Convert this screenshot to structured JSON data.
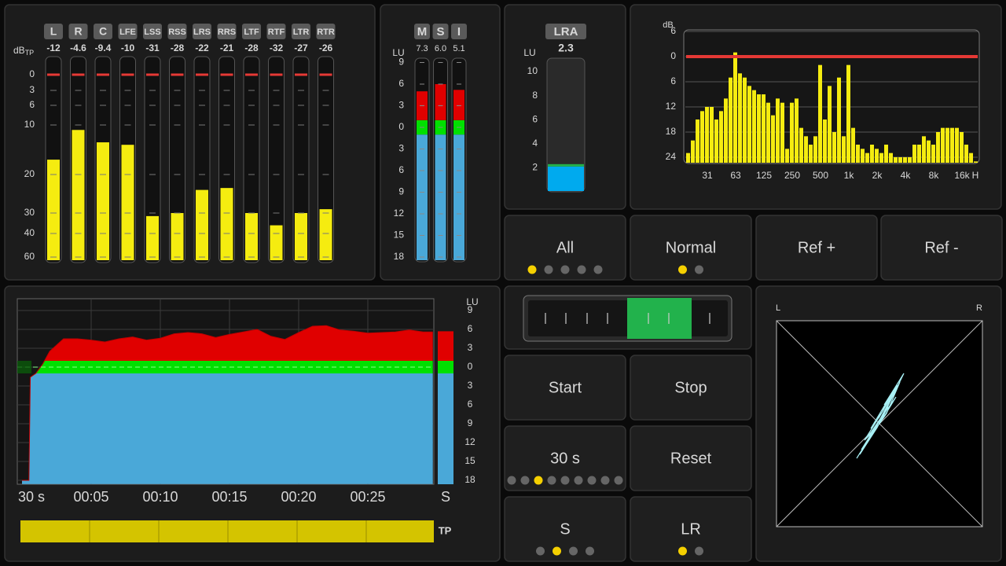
{
  "green_band": [
    -1,
    1
  ],
  "channel_meter": {
    "unit": "dB",
    "unit_sub": "TP",
    "scale": [
      0,
      {
        "value": -3,
        "label": "3"
      },
      {
        "value": -6,
        "label": "6"
      },
      {
        "value": -10,
        "label": "10"
      },
      {
        "value": -20,
        "label": "20"
      },
      {
        "value": -30,
        "label": "30"
      },
      {
        "value": -40,
        "label": "40"
      },
      {
        "value": -60,
        "label": "60"
      }
    ],
    "channels": [
      {
        "name": "L",
        "peak": -12,
        "level": -17
      },
      {
        "name": "R",
        "peak": -4.6,
        "level": -11,
        "peak_color": "#e53935"
      },
      {
        "name": "C",
        "peak": -9.4,
        "level": -13.5
      },
      {
        "name": "LFE",
        "peak": -10,
        "level": -14
      },
      {
        "name": "LSS",
        "peak": -31,
        "level": -31.5
      },
      {
        "name": "RSS",
        "peak": -28,
        "level": -30
      },
      {
        "name": "LRS",
        "peak": -22,
        "level": -24
      },
      {
        "name": "RRS",
        "peak": -21,
        "level": -23.5
      },
      {
        "name": "LTF",
        "peak": -28,
        "level": -30
      },
      {
        "name": "RTF",
        "peak": -32,
        "level": -36
      },
      {
        "name": "LTR",
        "peak": -27,
        "level": -30
      },
      {
        "name": "RTR",
        "peak": -26,
        "level": -29
      }
    ]
  },
  "loudness_meter": {
    "unit": "LU",
    "readout_color": "#e53935",
    "scale": [
      9,
      6,
      3,
      0,
      {
        "value": -3,
        "label": "3"
      },
      {
        "value": -6,
        "label": "6"
      },
      {
        "value": -9,
        "label": "9"
      },
      {
        "value": -12,
        "label": "12"
      },
      {
        "value": -15,
        "label": "15"
      },
      {
        "value": -18,
        "label": "18"
      }
    ],
    "channels": [
      {
        "name": "M",
        "readout": "7.3",
        "level": 5
      },
      {
        "name": "S",
        "readout": "6.0",
        "level": 6
      },
      {
        "name": "I",
        "readout": "5.1",
        "level": 5.2
      }
    ]
  },
  "lra": {
    "name": "LRA",
    "unit": "LU",
    "value": 2.3,
    "scale": [
      10,
      8,
      6,
      4,
      2
    ]
  },
  "spectrum": {
    "unit": "dB",
    "reference_line": 0,
    "yticks": [
      6,
      0,
      {
        "value": -6,
        "label": "6"
      },
      {
        "value": -12,
        "label": "12"
      },
      {
        "value": -18,
        "label": "18"
      },
      {
        "value": -24,
        "label": "24"
      }
    ],
    "bands": [
      "31",
      "63",
      "125",
      "250",
      "500",
      "1k",
      "2k",
      "4k",
      "8k",
      "16k",
      "H"
    ],
    "values": [
      -23,
      -20,
      -15,
      -13,
      -12,
      -12,
      -15,
      -13,
      -10,
      -5,
      1,
      -4,
      -5,
      -7,
      -8,
      -9,
      -9,
      -11,
      -14,
      -10,
      -11,
      -22,
      -11,
      -10,
      -17,
      -19,
      -21,
      -19,
      -2,
      -15,
      -7,
      -18,
      -5,
      -19,
      -2,
      -17,
      -21,
      -22,
      -23,
      -21,
      -22,
      -23,
      -21,
      -23,
      -24,
      -24,
      -24,
      -24,
      -21,
      -21,
      -19,
      -20,
      -21,
      -18,
      -17,
      -17,
      -17,
      -17,
      -18,
      -21,
      -23,
      -25
    ]
  },
  "history": {
    "unit": "LU",
    "window": "30 s",
    "current_label": "S",
    "tp_label": "TP",
    "xlim": [
      0,
      30
    ],
    "ylim": [
      -18.6,
      10.9
    ],
    "xticks": [
      {
        "value": 5,
        "label": "00:05"
      },
      {
        "value": 10,
        "label": "00:10"
      },
      {
        "value": 15,
        "label": "00:15"
      },
      {
        "value": 20,
        "label": "00:20"
      },
      {
        "value": 25,
        "label": "00:25"
      }
    ],
    "yticks": [
      9,
      6,
      3,
      0,
      {
        "value": -3,
        "label": "3"
      },
      {
        "value": -6,
        "label": "6"
      },
      {
        "value": -9,
        "label": "9"
      },
      {
        "value": -12,
        "label": "12"
      },
      {
        "value": -15,
        "label": "15"
      },
      {
        "value": -18,
        "label": "18"
      }
    ],
    "x": [
      0,
      0.5,
      0.6,
      1,
      1.5,
      2,
      3,
      4,
      5,
      6,
      7,
      8,
      9,
      10,
      11,
      12,
      13,
      14,
      15,
      16,
      17,
      18,
      19,
      20,
      21,
      22,
      23,
      24,
      25,
      26,
      27,
      28,
      29,
      29.7
    ],
    "values": [
      -18,
      -18,
      -1.6,
      -1,
      0.5,
      2.5,
      4.5,
      4.5,
      4.3,
      4,
      4.5,
      4.8,
      4.3,
      4.6,
      5.3,
      5.5,
      5.3,
      4.7,
      5.2,
      5.6,
      6,
      4.9,
      4.4,
      5.5,
      6.5,
      6.6,
      5.9,
      5.7,
      5.4,
      5.5,
      5.6,
      5.9,
      5.6,
      5.6
    ],
    "current": 5.7
  },
  "controls": [
    {
      "label": "All",
      "options": 5,
      "selected": 0
    },
    {
      "label": "Normal",
      "options": 2,
      "selected": 0
    },
    {
      "label": "Ref +"
    },
    {
      "label": "Ref -"
    },
    {
      "label": "Start",
      "disabled": true
    },
    {
      "label": "Stop"
    },
    {
      "label": "30 s",
      "options": 9,
      "selected": 2
    },
    {
      "label": "Reset"
    },
    {
      "label": "S",
      "options": 4,
      "selected": 1
    },
    {
      "label": "LR",
      "options": 2,
      "selected": 0
    }
  ],
  "goniometer": {
    "left": "L",
    "right": "R"
  }
}
